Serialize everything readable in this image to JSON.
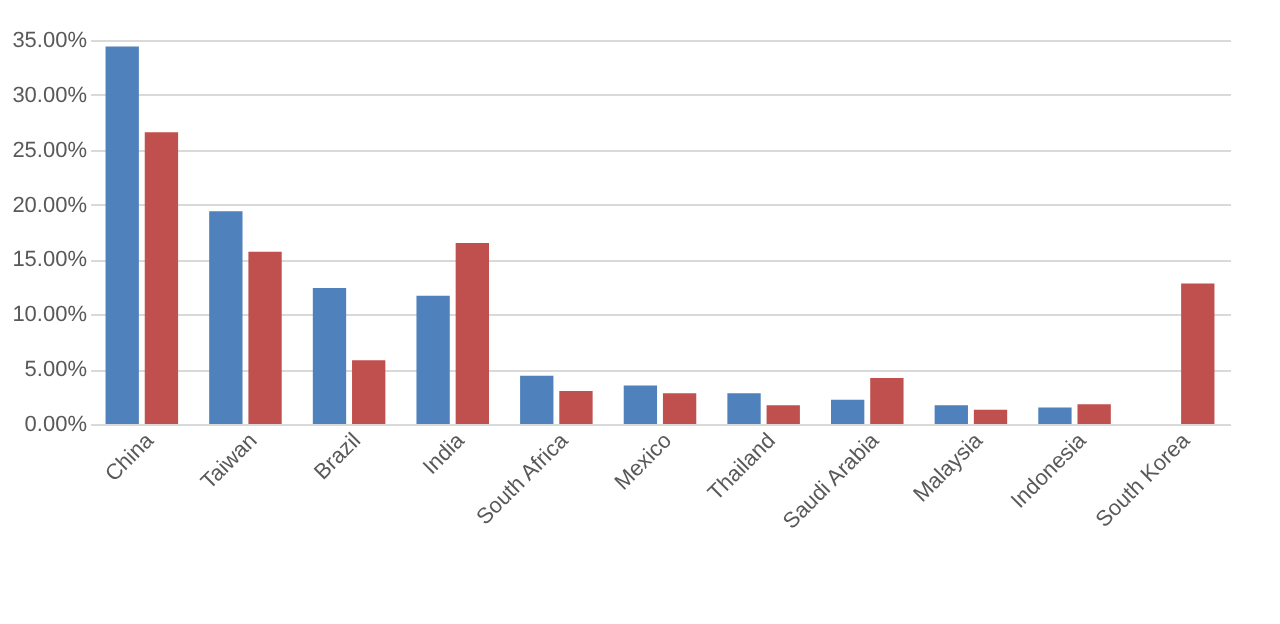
{
  "chart_data": {
    "type": "bar",
    "categories": [
      "China",
      "Taiwan",
      "Brazil",
      "India",
      "South Africa",
      "Mexico",
      "Thailand",
      "Saudi Arabia",
      "Malaysia",
      "Indonesia",
      "South Korea"
    ],
    "series": [
      {
        "color": "#4f81bd",
        "values": [
          34.4,
          19.4,
          12.4,
          11.7,
          4.4,
          3.5,
          2.8,
          2.2,
          1.7,
          1.5,
          null
        ]
      },
      {
        "color": "#c0504d",
        "values": [
          26.6,
          15.7,
          5.8,
          16.5,
          3.0,
          2.8,
          1.7,
          4.2,
          1.3,
          1.8,
          12.8
        ]
      }
    ],
    "ylim": [
      0,
      35
    ],
    "yticks": [
      {
        "value": 0,
        "label": "0.00%"
      },
      {
        "value": 5,
        "label": "5.00%"
      },
      {
        "value": 10,
        "label": "10.00%"
      },
      {
        "value": 15,
        "label": "15.00%"
      },
      {
        "value": 20,
        "label": "20.00%"
      },
      {
        "value": 25,
        "label": "25.00%"
      },
      {
        "value": 30,
        "label": "30.00%"
      },
      {
        "value": 35,
        "label": "35.00%"
      }
    ],
    "grid": "y"
  }
}
